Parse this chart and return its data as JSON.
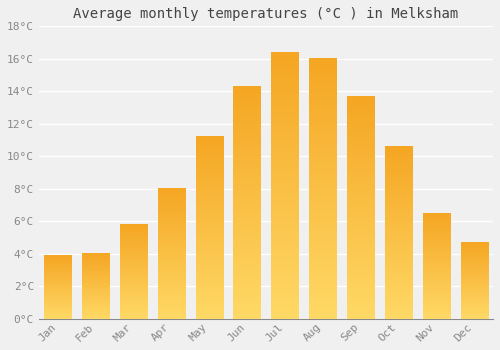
{
  "title": "Average monthly temperatures (°C ) in Melksham",
  "months": [
    "Jan",
    "Feb",
    "Mar",
    "Apr",
    "May",
    "Jun",
    "Jul",
    "Aug",
    "Sep",
    "Oct",
    "Nov",
    "Dec"
  ],
  "values": [
    3.9,
    4.0,
    5.8,
    8.0,
    11.2,
    14.3,
    16.4,
    16.0,
    13.7,
    10.6,
    6.5,
    4.7
  ],
  "bar_color_top": "#F5A623",
  "bar_color_bottom": "#FFD966",
  "background_color": "#F0F0F0",
  "grid_color": "#FFFFFF",
  "ylim": [
    0,
    18
  ],
  "yticks": [
    0,
    2,
    4,
    6,
    8,
    10,
    12,
    14,
    16,
    18
  ],
  "ytick_labels": [
    "0°C",
    "2°C",
    "4°C",
    "6°C",
    "8°C",
    "10°C",
    "12°C",
    "14°C",
    "16°C",
    "18°C"
  ],
  "title_fontsize": 10,
  "tick_fontsize": 8,
  "tick_color": "#888888",
  "bar_edge_color": "none",
  "n_gradient": 100
}
